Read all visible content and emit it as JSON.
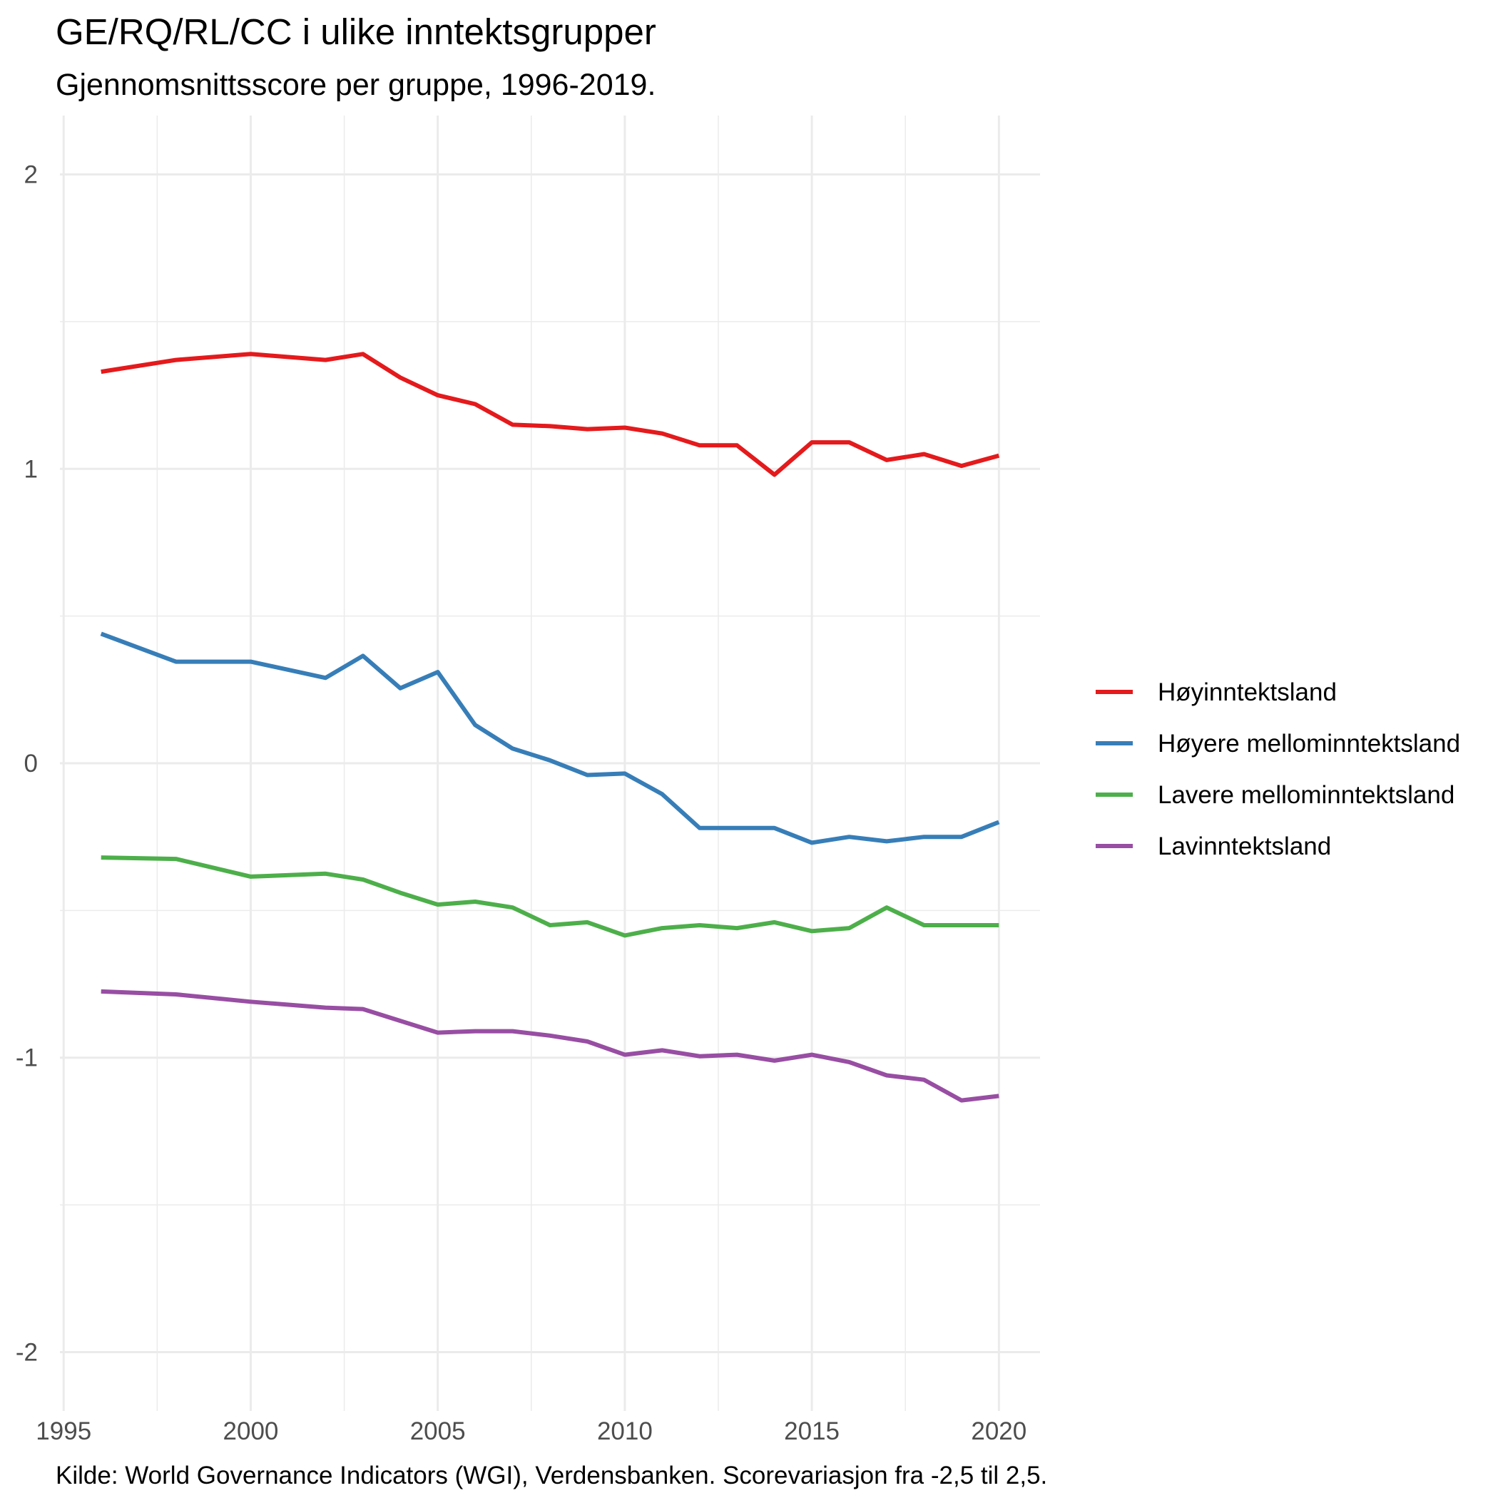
{
  "chart_data": {
    "type": "line",
    "title": "GE/RQ/RL/CC i ulike inntektsgrupper",
    "subtitle": "Gjennomsnittsscore per gruppe, 1996-2019.",
    "caption": "Kilde: World Governance Indicators (WGI), Verdensbanken. Scorevariasjon fra -2,5 til 2,5.",
    "xlabel": "",
    "ylabel": "",
    "xlim": [
      1994.9,
      2021.1
    ],
    "ylim": [
      -2.2,
      2.2
    ],
    "x_ticks": [
      1995,
      2000,
      2005,
      2010,
      2015,
      2020
    ],
    "y_ticks": [
      2,
      1,
      0,
      -1,
      -2
    ],
    "y_tick_labels": [
      "2",
      "1",
      "0",
      "-1",
      "-2"
    ],
    "grid": true,
    "legend_position": "right",
    "x": [
      1996,
      1998,
      2000,
      2002,
      2003,
      2004,
      2005,
      2006,
      2007,
      2008,
      2009,
      2010,
      2011,
      2012,
      2013,
      2014,
      2015,
      2016,
      2017,
      2018,
      2019,
      2020
    ],
    "series": [
      {
        "name": "Høyinntektsland",
        "color": "#e41a1c",
        "values": [
          1.33,
          1.37,
          1.39,
          1.37,
          1.39,
          1.31,
          1.25,
          1.22,
          1.15,
          1.145,
          1.135,
          1.14,
          1.12,
          1.08,
          1.08,
          0.98,
          1.09,
          1.09,
          1.03,
          1.05,
          1.01,
          1.045
        ]
      },
      {
        "name": "Høyere mellominntektsland",
        "color": "#377eb8",
        "values": [
          0.44,
          0.345,
          0.345,
          0.29,
          0.365,
          0.255,
          0.31,
          0.13,
          0.05,
          0.01,
          -0.04,
          -0.035,
          -0.105,
          -0.22,
          -0.22,
          -0.22,
          -0.27,
          -0.25,
          -0.265,
          -0.25,
          -0.25,
          -0.2
        ]
      },
      {
        "name": "Lavere mellominntektsland",
        "color": "#4daf4a",
        "values": [
          -0.32,
          -0.325,
          -0.385,
          -0.375,
          -0.395,
          -0.44,
          -0.48,
          -0.47,
          -0.49,
          -0.55,
          -0.54,
          -0.585,
          -0.56,
          -0.55,
          -0.56,
          -0.54,
          -0.57,
          -0.56,
          -0.49,
          -0.55,
          -0.55,
          -0.55
        ]
      },
      {
        "name": "Lavinntektsland",
        "color": "#984ea3",
        "values": [
          -0.775,
          -0.785,
          -0.81,
          -0.83,
          -0.835,
          -0.875,
          -0.915,
          -0.91,
          -0.91,
          -0.925,
          -0.945,
          -0.99,
          -0.975,
          -0.995,
          -0.99,
          -1.01,
          -0.99,
          -1.015,
          -1.06,
          -1.075,
          -1.145,
          -1.13
        ]
      }
    ]
  }
}
